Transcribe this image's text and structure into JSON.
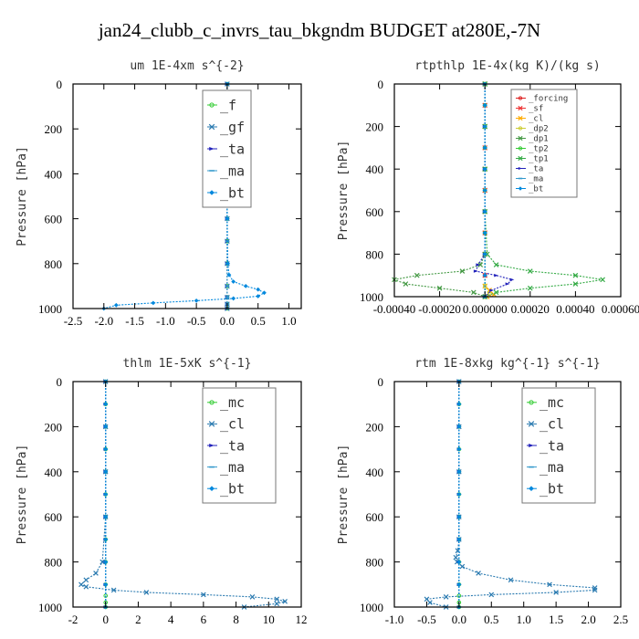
{
  "figure": {
    "title": "jan24_clubb_c_invrs_tau_bkgndm  BUDGET at280E,-7N"
  },
  "chart_data": [
    {
      "type": "line",
      "title": "um  1E-4xm s^{-2}",
      "ylabel": "Pressure [hPa]",
      "xlabel": "",
      "xlim": [
        -2.5,
        1.2
      ],
      "ylim": [
        1000,
        0
      ],
      "xticks": [
        -2.5,
        -2.0,
        -1.5,
        -1.0,
        -0.5,
        0.0,
        0.5,
        1.0
      ],
      "xtick_labels": [
        "-2.5",
        "-2.0",
        "-1.5",
        "-1.0",
        "-0.5",
        "0.0",
        "0.5",
        "1.0"
      ],
      "yticks": [
        0,
        200,
        400,
        600,
        800,
        1000
      ],
      "ytick_labels": [
        "0",
        "200",
        "400",
        "600",
        "800",
        "1000"
      ],
      "legend_position": "top-right",
      "legend_font": 15,
      "series": [
        {
          "name": "_f",
          "color": "#33cc33",
          "marker": "circle",
          "x": [
            0,
            0,
            0,
            0,
            0,
            0,
            0,
            0,
            0,
            0,
            0,
            0,
            0
          ],
          "y": [
            0,
            100,
            200,
            300,
            400,
            500,
            600,
            700,
            800,
            900,
            950,
            980,
            1000
          ]
        },
        {
          "name": "_gf",
          "color": "#2a7ab0",
          "marker": "x",
          "x": [
            0,
            0,
            0,
            0,
            0,
            0,
            0,
            0,
            0,
            0,
            0,
            0,
            0
          ],
          "y": [
            0,
            100,
            200,
            300,
            400,
            500,
            600,
            700,
            800,
            900,
            950,
            980,
            1000
          ]
        },
        {
          "name": "_ta",
          "color": "#2222bb",
          "marker": "arrow",
          "x": [
            0,
            0,
            0,
            0,
            0,
            0,
            0,
            0,
            0,
            0,
            0,
            0,
            0
          ],
          "y": [
            0,
            100,
            200,
            300,
            400,
            500,
            600,
            700,
            800,
            900,
            950,
            980,
            1000
          ]
        },
        {
          "name": "_ma",
          "color": "#3399cc",
          "marker": "dash",
          "x": [
            0,
            0,
            0,
            0,
            0,
            0,
            0,
            0,
            0,
            0,
            0,
            0,
            0
          ],
          "y": [
            0,
            100,
            200,
            300,
            400,
            500,
            600,
            700,
            800,
            900,
            950,
            980,
            1000
          ]
        },
        {
          "name": "_bt",
          "color": "#0088dd",
          "marker": "diamond",
          "x": [
            0,
            0,
            0,
            0,
            0.01,
            0.03,
            0.1,
            0.3,
            0.5,
            0.6,
            0.5,
            0.1,
            -0.5,
            -1.2,
            -1.8,
            -2.0
          ],
          "y": [
            0,
            200,
            400,
            600,
            800,
            850,
            880,
            900,
            915,
            930,
            945,
            955,
            965,
            975,
            985,
            1000
          ]
        }
      ]
    },
    {
      "type": "line",
      "title": "rtpthlp  1E-4x(kg K)/(kg s)",
      "ylabel": "Pressure [hPa]",
      "xlabel": "",
      "xlim": [
        -0.0004,
        0.0006
      ],
      "ylim": [
        1000,
        0
      ],
      "xticks": [
        -0.0004,
        -0.0002,
        0.0,
        0.0002,
        0.0004,
        0.0006
      ],
      "xtick_labels": [
        "-0.00040",
        "-0.00020",
        "0.000000",
        "0.00020",
        "0.00040",
        "0.00060"
      ],
      "yticks": [
        0,
        200,
        400,
        600,
        800,
        1000
      ],
      "ytick_labels": [
        "0",
        "200",
        "400",
        "600",
        "800",
        "1000"
      ],
      "legend_position": "top-right",
      "legend_font": 9,
      "series": [
        {
          "name": "_forcing",
          "color": "#dd2222",
          "marker": "circle",
          "x": [
            0,
            0,
            0,
            0,
            0,
            0,
            0,
            0,
            0,
            0,
            0
          ],
          "y": [
            0,
            100,
            200,
            300,
            400,
            500,
            600,
            700,
            800,
            900,
            1000
          ]
        },
        {
          "name": "_sf",
          "color": "#ee3333",
          "marker": "x",
          "x": [
            0,
            0,
            0,
            0,
            0,
            0,
            0,
            0,
            0,
            0,
            0
          ],
          "y": [
            0,
            100,
            200,
            300,
            400,
            500,
            600,
            700,
            800,
            900,
            1000
          ]
        },
        {
          "name": "_cl",
          "color": "#ffaa00",
          "marker": "x",
          "x": [
            0,
            0,
            0,
            0,
            0,
            0,
            2e-05,
            4e-05,
            1e-05
          ],
          "y": [
            0,
            200,
            400,
            600,
            800,
            950,
            970,
            990,
            1000
          ]
        },
        {
          "name": "_dp2",
          "color": "#cccc33",
          "marker": "circle",
          "x": [
            0,
            0,
            0,
            0,
            0,
            0,
            2e-05,
            0
          ],
          "y": [
            0,
            200,
            400,
            600,
            800,
            950,
            985,
            1000
          ]
        },
        {
          "name": "_dp1",
          "color": "#449944",
          "marker": "x",
          "x": [
            0,
            0,
            0,
            0,
            0,
            -2e-05,
            -0.0001,
            -0.0003,
            -0.0004,
            -0.00035,
            -0.0002,
            -5e-05,
            0
          ],
          "y": [
            0,
            200,
            400,
            600,
            800,
            850,
            880,
            900,
            920,
            940,
            960,
            980,
            1000
          ]
        },
        {
          "name": "_tp2",
          "color": "#33cc33",
          "marker": "circle",
          "x": [
            0,
            0,
            0,
            0,
            0,
            0,
            0,
            0,
            0,
            0
          ],
          "y": [
            0,
            100,
            200,
            300,
            400,
            500,
            600,
            700,
            800,
            1000
          ]
        },
        {
          "name": "_tp1",
          "color": "#33aa44",
          "marker": "x",
          "x": [
            0,
            0,
            0,
            0,
            1e-05,
            5e-05,
            0.0002,
            0.0004,
            0.00052,
            0.0004,
            0.0002,
            5e-05,
            0
          ],
          "y": [
            0,
            200,
            400,
            600,
            800,
            850,
            880,
            900,
            920,
            940,
            960,
            980,
            1000
          ]
        },
        {
          "name": "_ta",
          "color": "#2222bb",
          "marker": "arrow",
          "x": [
            0,
            0,
            0,
            0,
            0,
            -3e-05,
            -4e-05,
            5e-05,
            0.00012,
            0.0001,
            3e-05,
            0
          ],
          "y": [
            0,
            200,
            400,
            600,
            800,
            850,
            880,
            900,
            920,
            940,
            970,
            1000
          ]
        },
        {
          "name": "_ma",
          "color": "#3399cc",
          "marker": "dash",
          "x": [
            0,
            0,
            0,
            0,
            0,
            0,
            0,
            0,
            0,
            0,
            0
          ],
          "y": [
            0,
            100,
            200,
            300,
            400,
            500,
            600,
            700,
            800,
            900,
            1000
          ]
        },
        {
          "name": "_bt",
          "color": "#0088dd",
          "marker": "diamond",
          "x": [
            0,
            0,
            0,
            0,
            0,
            0,
            0,
            0,
            0,
            0,
            0
          ],
          "y": [
            0,
            100,
            200,
            300,
            400,
            500,
            600,
            700,
            800,
            900,
            1000
          ]
        }
      ]
    },
    {
      "type": "line",
      "title": "thlm  1E-5xK s^{-1}",
      "ylabel": "Pressure [hPa]",
      "xlabel": "",
      "xlim": [
        -2,
        12
      ],
      "ylim": [
        1000,
        0
      ],
      "xticks": [
        -2,
        0,
        2,
        4,
        6,
        8,
        10,
        12
      ],
      "xtick_labels": [
        "-2",
        "0",
        "2",
        "4",
        "6",
        "8",
        "10",
        "12"
      ],
      "yticks": [
        0,
        200,
        400,
        600,
        800,
        1000
      ],
      "ytick_labels": [
        "0",
        "200",
        "400",
        "600",
        "800",
        "1000"
      ],
      "legend_position": "top-right",
      "legend_font": 15,
      "series": [
        {
          "name": "_mc",
          "color": "#33cc33",
          "marker": "circle",
          "x": [
            0,
            0,
            0,
            0,
            0,
            0,
            0,
            0,
            0,
            0,
            0,
            0,
            0
          ],
          "y": [
            0,
            100,
            200,
            300,
            400,
            500,
            600,
            700,
            800,
            900,
            950,
            980,
            1000
          ]
        },
        {
          "name": "_cl",
          "color": "#2a7ab0",
          "marker": "x",
          "x": [
            0,
            0,
            0,
            0,
            -0.2,
            -0.6,
            -1.2,
            -1.5,
            -1.2,
            0.5,
            2.5,
            6,
            9,
            10.5,
            11,
            10.5,
            8.5
          ],
          "y": [
            0,
            200,
            400,
            600,
            800,
            850,
            880,
            900,
            910,
            925,
            935,
            945,
            955,
            965,
            975,
            985,
            1000
          ]
        },
        {
          "name": "_ta",
          "color": "#2222bb",
          "marker": "arrow",
          "x": [
            0,
            0,
            0,
            0,
            0,
            0,
            0,
            0,
            0,
            0,
            0
          ],
          "y": [
            0,
            100,
            200,
            300,
            400,
            500,
            600,
            700,
            800,
            900,
            1000
          ]
        },
        {
          "name": "_ma",
          "color": "#3399cc",
          "marker": "dash",
          "x": [
            0,
            0,
            0,
            0,
            0,
            0,
            0,
            0,
            0,
            0,
            0
          ],
          "y": [
            0,
            100,
            200,
            300,
            400,
            500,
            600,
            700,
            800,
            900,
            1000
          ]
        },
        {
          "name": "_bt",
          "color": "#0088dd",
          "marker": "diamond",
          "x": [
            0,
            0,
            0,
            0,
            0,
            0,
            0,
            0,
            0,
            0,
            0
          ],
          "y": [
            0,
            100,
            200,
            300,
            400,
            500,
            600,
            700,
            800,
            900,
            1000
          ]
        }
      ]
    },
    {
      "type": "line",
      "title": "rtm  1E-8xkg kg^{-1} s^{-1}",
      "ylabel": "Pressure [hPa]",
      "xlabel": "",
      "xlim": [
        -1.0,
        2.5
      ],
      "ylim": [
        1000,
        0
      ],
      "xticks": [
        -1.0,
        -0.5,
        0.0,
        0.5,
        1.0,
        1.5,
        2.0,
        2.5
      ],
      "xtick_labels": [
        "-1.0",
        "-0.5",
        "0.0",
        "0.5",
        "1.0",
        "1.5",
        "2.0",
        "2.5"
      ],
      "yticks": [
        0,
        200,
        400,
        600,
        800,
        1000
      ],
      "ytick_labels": [
        "0",
        "200",
        "400",
        "600",
        "800",
        "1000"
      ],
      "legend_position": "top-right",
      "legend_font": 15,
      "series": [
        {
          "name": "_mc",
          "color": "#33cc33",
          "marker": "circle",
          "x": [
            0,
            0,
            0,
            0,
            0,
            0,
            0,
            0,
            0,
            0,
            0,
            0,
            0
          ],
          "y": [
            0,
            100,
            200,
            300,
            400,
            500,
            600,
            700,
            800,
            900,
            950,
            980,
            1000
          ]
        },
        {
          "name": "_cl",
          "color": "#2a7ab0",
          "marker": "x",
          "x": [
            0,
            0,
            0,
            0,
            0,
            -0.02,
            -0.05,
            -0.03,
            0.05,
            0.3,
            0.8,
            1.4,
            2.1,
            2.1,
            1.5,
            0.5,
            -0.2,
            -0.5,
            -0.45,
            -0.2
          ],
          "y": [
            0,
            200,
            400,
            600,
            700,
            750,
            780,
            800,
            820,
            850,
            880,
            900,
            915,
            925,
            935,
            945,
            955,
            965,
            980,
            1000
          ]
        },
        {
          "name": "_ta",
          "color": "#2222bb",
          "marker": "arrow",
          "x": [
            0,
            0,
            0,
            0,
            0,
            0,
            0,
            0,
            0,
            0,
            0
          ],
          "y": [
            0,
            100,
            200,
            300,
            400,
            500,
            600,
            700,
            800,
            900,
            1000
          ]
        },
        {
          "name": "_ma",
          "color": "#3399cc",
          "marker": "dash",
          "x": [
            0,
            0,
            0,
            0,
            0,
            0,
            0,
            0,
            0,
            0,
            0
          ],
          "y": [
            0,
            100,
            200,
            300,
            400,
            500,
            600,
            700,
            800,
            900,
            1000
          ]
        },
        {
          "name": "_bt",
          "color": "#0088dd",
          "marker": "diamond",
          "x": [
            0,
            0,
            0,
            0,
            0,
            0,
            0,
            0,
            0,
            0,
            0
          ],
          "y": [
            0,
            100,
            200,
            300,
            400,
            500,
            600,
            700,
            800,
            900,
            1000
          ]
        }
      ]
    }
  ]
}
